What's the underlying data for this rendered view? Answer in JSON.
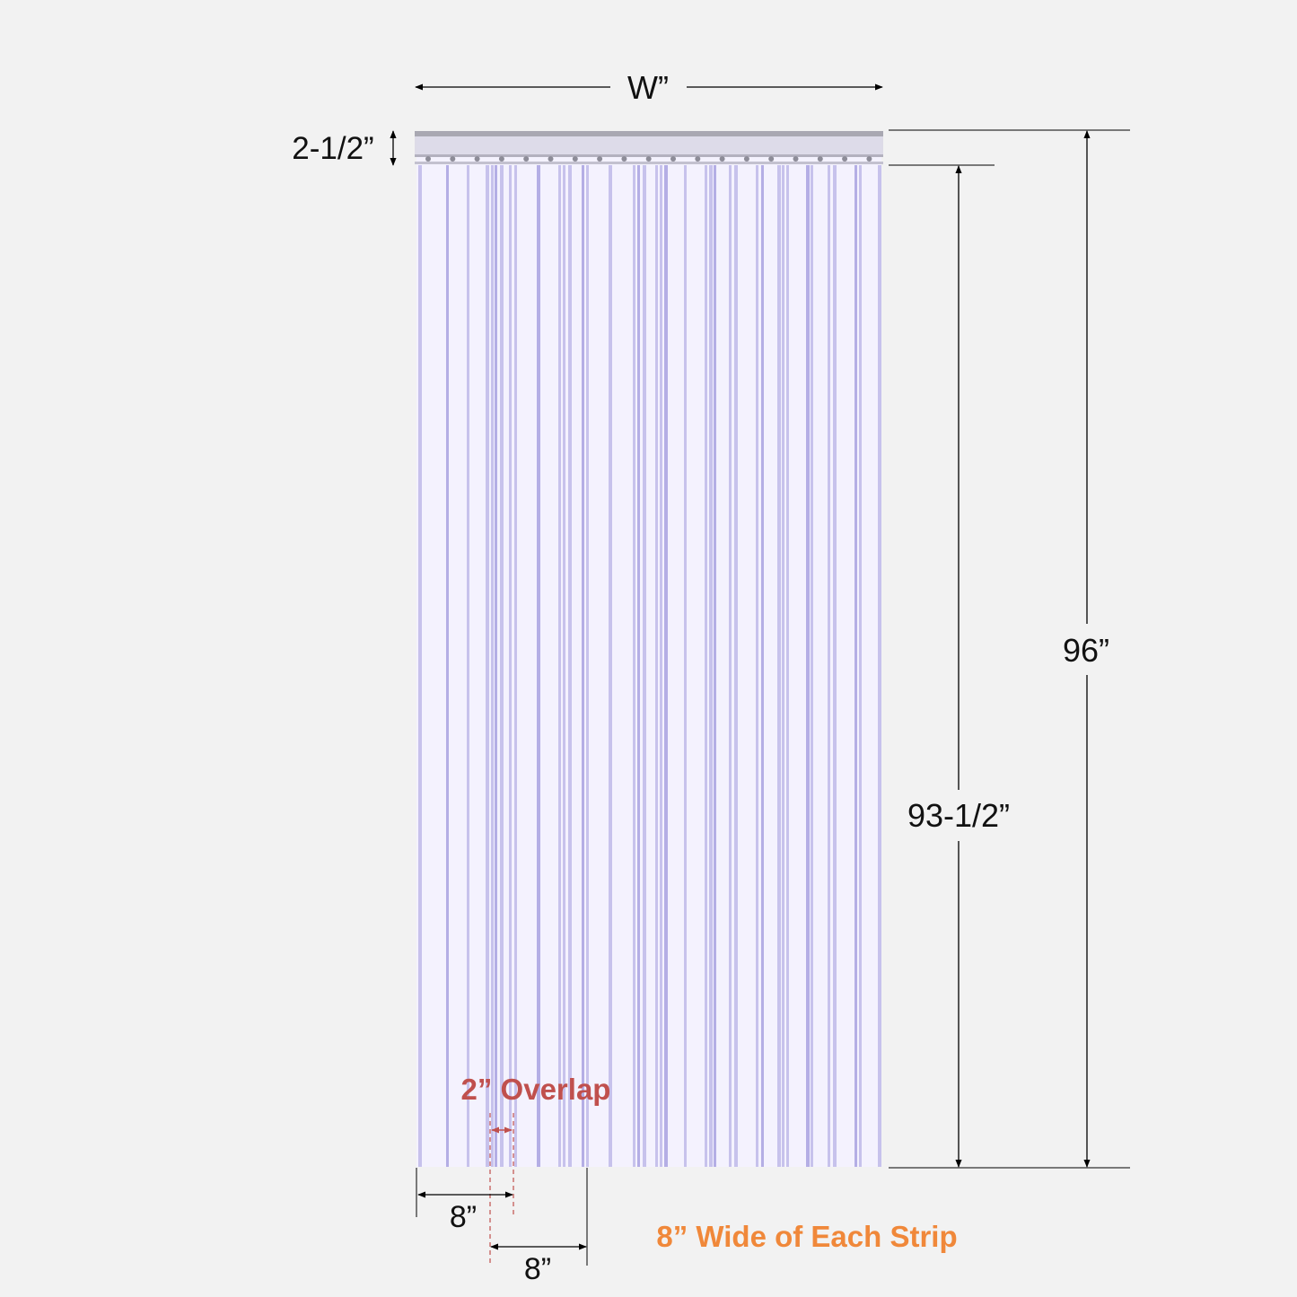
{
  "labels": {
    "width": "W”",
    "header_height": "2-1/2”",
    "total_height": "96”",
    "strip_height": "93-1/2”",
    "overlap": "2” Overlap",
    "strip_width_1": "8”",
    "strip_width_2": "8”",
    "strip_note": "8” Wide of Each Strip"
  },
  "colors": {
    "background": "#f2f2f2",
    "curtain": "#f4f2fe",
    "strip_edge": "#b8b2e6",
    "strip_edge_dark": "#9f97dc",
    "header_bar": "#a9a8b2",
    "dimension_line": "#000000",
    "overlap_accent": "#c0504d",
    "note_accent": "#f0883a"
  }
}
